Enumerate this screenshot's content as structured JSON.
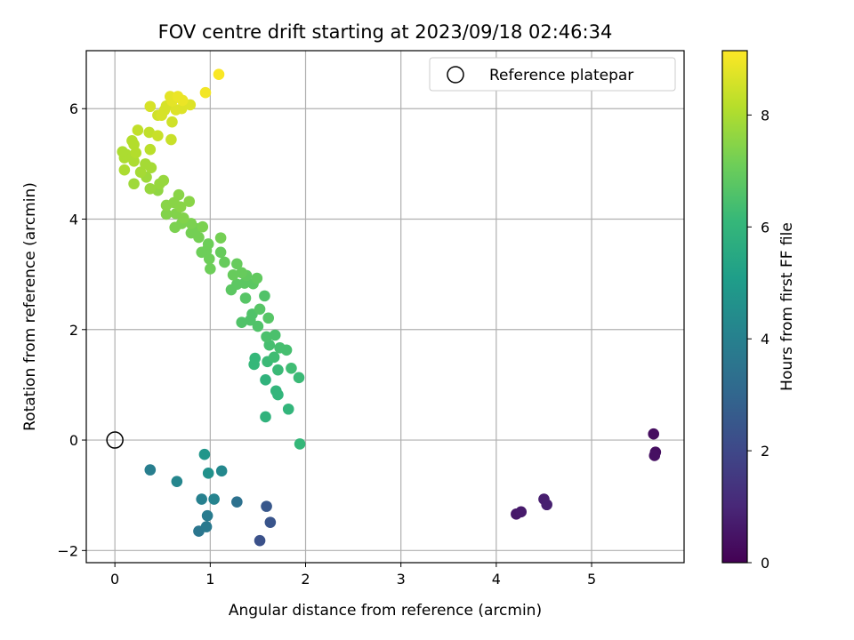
{
  "chart_data": {
    "type": "scatter",
    "title": "FOV centre drift starting at 2023/09/18 02:46:34",
    "xlabel": "Angular distance from reference (arcmin)",
    "ylabel": "Rotation from reference (arcmin)",
    "xlim": [
      -0.3,
      5.97
    ],
    "ylim": [
      -2.22,
      7.05
    ],
    "x_ticks": [
      0,
      1,
      2,
      3,
      4,
      5
    ],
    "y_ticks": [
      -2,
      0,
      2,
      4,
      6
    ],
    "grid": true,
    "legend": {
      "position": "top-right",
      "entries": [
        "Reference platepar"
      ]
    },
    "reference_point": {
      "x": 0,
      "y": 0,
      "label": "Reference platepar"
    },
    "colorbar": {
      "label": "Hours from first FF file",
      "range": [
        0,
        9.15
      ],
      "ticks": [
        0,
        2,
        4,
        6,
        8
      ],
      "colormap": "viridis",
      "stops": [
        "#440154",
        "#482878",
        "#3e4989",
        "#31688e",
        "#26828e",
        "#1f9e89",
        "#35b779",
        "#6ece58",
        "#b5de2b",
        "#fde725"
      ]
    },
    "points": [
      {
        "x": 5.65,
        "y": 0.11,
        "c": 0.3
      },
      {
        "x": 5.67,
        "y": -0.22,
        "c": 0.35
      },
      {
        "x": 5.66,
        "y": -0.28,
        "c": 0.4
      },
      {
        "x": 4.21,
        "y": -1.34,
        "c": 0.6
      },
      {
        "x": 4.26,
        "y": -1.3,
        "c": 0.65
      },
      {
        "x": 4.5,
        "y": -1.07,
        "c": 0.75
      },
      {
        "x": 4.53,
        "y": -1.17,
        "c": 0.8
      },
      {
        "x": 1.52,
        "y": -1.82,
        "c": 2.3
      },
      {
        "x": 1.63,
        "y": -1.49,
        "c": 2.4
      },
      {
        "x": 1.59,
        "y": -1.2,
        "c": 2.5
      },
      {
        "x": 1.28,
        "y": -1.12,
        "c": 3.4
      },
      {
        "x": 0.88,
        "y": -1.65,
        "c": 3.6
      },
      {
        "x": 0.96,
        "y": -1.57,
        "c": 3.7
      },
      {
        "x": 0.97,
        "y": -1.37,
        "c": 3.8
      },
      {
        "x": 0.91,
        "y": -1.07,
        "c": 4.0
      },
      {
        "x": 1.04,
        "y": -1.07,
        "c": 4.1
      },
      {
        "x": 0.37,
        "y": -0.54,
        "c": 3.9
      },
      {
        "x": 0.65,
        "y": -0.75,
        "c": 4.2
      },
      {
        "x": 1.12,
        "y": -0.56,
        "c": 4.3
      },
      {
        "x": 0.98,
        "y": -0.6,
        "c": 4.6
      },
      {
        "x": 0.94,
        "y": -0.26,
        "c": 4.8
      },
      {
        "x": 1.94,
        "y": -0.07,
        "c": 6.1
      },
      {
        "x": 1.58,
        "y": 0.42,
        "c": 5.9
      },
      {
        "x": 1.82,
        "y": 0.56,
        "c": 6.0
      },
      {
        "x": 1.69,
        "y": 0.89,
        "c": 6.0
      },
      {
        "x": 1.71,
        "y": 0.82,
        "c": 6.0
      },
      {
        "x": 1.58,
        "y": 1.09,
        "c": 5.9
      },
      {
        "x": 1.93,
        "y": 1.13,
        "c": 6.2
      },
      {
        "x": 1.71,
        "y": 1.27,
        "c": 6.2
      },
      {
        "x": 1.85,
        "y": 1.3,
        "c": 6.3
      },
      {
        "x": 1.46,
        "y": 1.37,
        "c": 6.1
      },
      {
        "x": 1.47,
        "y": 1.48,
        "c": 6.1
      },
      {
        "x": 1.6,
        "y": 1.42,
        "c": 6.2
      },
      {
        "x": 1.67,
        "y": 1.5,
        "c": 6.3
      },
      {
        "x": 1.73,
        "y": 1.67,
        "c": 6.4
      },
      {
        "x": 1.8,
        "y": 1.63,
        "c": 6.4
      },
      {
        "x": 1.62,
        "y": 1.72,
        "c": 6.4
      },
      {
        "x": 1.59,
        "y": 1.87,
        "c": 6.5
      },
      {
        "x": 1.68,
        "y": 1.9,
        "c": 6.5
      },
      {
        "x": 1.5,
        "y": 2.06,
        "c": 6.6
      },
      {
        "x": 1.42,
        "y": 2.17,
        "c": 6.6
      },
      {
        "x": 1.33,
        "y": 2.13,
        "c": 6.6
      },
      {
        "x": 1.44,
        "y": 2.28,
        "c": 6.6
      },
      {
        "x": 1.52,
        "y": 2.37,
        "c": 6.7
      },
      {
        "x": 1.61,
        "y": 2.21,
        "c": 6.7
      },
      {
        "x": 1.57,
        "y": 2.61,
        "c": 6.6
      },
      {
        "x": 1.37,
        "y": 2.57,
        "c": 6.7
      },
      {
        "x": 1.22,
        "y": 2.72,
        "c": 6.8
      },
      {
        "x": 1.28,
        "y": 2.82,
        "c": 6.8
      },
      {
        "x": 1.36,
        "y": 2.84,
        "c": 6.8
      },
      {
        "x": 1.45,
        "y": 2.83,
        "c": 6.8
      },
      {
        "x": 1.49,
        "y": 2.93,
        "c": 6.9
      },
      {
        "x": 1.38,
        "y": 2.98,
        "c": 6.9
      },
      {
        "x": 1.33,
        "y": 3.03,
        "c": 7.0
      },
      {
        "x": 1.24,
        "y": 2.99,
        "c": 7.0
      },
      {
        "x": 1.28,
        "y": 3.19,
        "c": 7.0
      },
      {
        "x": 1.15,
        "y": 3.22,
        "c": 7.0
      },
      {
        "x": 1.11,
        "y": 3.4,
        "c": 7.0
      },
      {
        "x": 1.0,
        "y": 3.1,
        "c": 7.1
      },
      {
        "x": 0.99,
        "y": 3.28,
        "c": 7.1
      },
      {
        "x": 0.96,
        "y": 3.43,
        "c": 7.1
      },
      {
        "x": 0.91,
        "y": 3.4,
        "c": 7.1
      },
      {
        "x": 0.98,
        "y": 3.55,
        "c": 7.1
      },
      {
        "x": 1.11,
        "y": 3.66,
        "c": 7.2
      },
      {
        "x": 0.88,
        "y": 3.67,
        "c": 7.2
      },
      {
        "x": 0.8,
        "y": 3.75,
        "c": 7.2
      },
      {
        "x": 0.85,
        "y": 3.83,
        "c": 7.2
      },
      {
        "x": 0.92,
        "y": 3.86,
        "c": 7.3
      },
      {
        "x": 0.8,
        "y": 3.92,
        "c": 7.3
      },
      {
        "x": 0.63,
        "y": 3.85,
        "c": 7.3
      },
      {
        "x": 0.7,
        "y": 3.92,
        "c": 7.3
      },
      {
        "x": 0.72,
        "y": 4.02,
        "c": 7.4
      },
      {
        "x": 0.64,
        "y": 4.1,
        "c": 7.4
      },
      {
        "x": 0.54,
        "y": 4.09,
        "c": 7.4
      },
      {
        "x": 0.54,
        "y": 4.25,
        "c": 7.5
      },
      {
        "x": 0.62,
        "y": 4.3,
        "c": 7.5
      },
      {
        "x": 0.69,
        "y": 4.22,
        "c": 7.5
      },
      {
        "x": 0.78,
        "y": 4.32,
        "c": 7.5
      },
      {
        "x": 0.67,
        "y": 4.44,
        "c": 7.5
      },
      {
        "x": 0.45,
        "y": 4.52,
        "c": 7.6
      },
      {
        "x": 0.37,
        "y": 4.55,
        "c": 7.7
      },
      {
        "x": 0.47,
        "y": 4.64,
        "c": 7.7
      },
      {
        "x": 0.51,
        "y": 4.7,
        "c": 7.7
      },
      {
        "x": 0.2,
        "y": 4.64,
        "c": 7.8
      },
      {
        "x": 0.33,
        "y": 4.76,
        "c": 7.8
      },
      {
        "x": 0.27,
        "y": 4.85,
        "c": 7.9
      },
      {
        "x": 0.38,
        "y": 4.93,
        "c": 7.9
      },
      {
        "x": 0.32,
        "y": 5.0,
        "c": 7.9
      },
      {
        "x": 0.1,
        "y": 4.89,
        "c": 8.0
      },
      {
        "x": 0.2,
        "y": 5.05,
        "c": 8.0
      },
      {
        "x": 0.1,
        "y": 5.11,
        "c": 8.0
      },
      {
        "x": 0.12,
        "y": 5.17,
        "c": 8.0
      },
      {
        "x": 0.08,
        "y": 5.22,
        "c": 8.0
      },
      {
        "x": 0.22,
        "y": 5.2,
        "c": 8.1
      },
      {
        "x": 0.2,
        "y": 5.35,
        "c": 8.1
      },
      {
        "x": 0.18,
        "y": 5.42,
        "c": 8.1
      },
      {
        "x": 0.37,
        "y": 5.26,
        "c": 8.2
      },
      {
        "x": 0.24,
        "y": 5.61,
        "c": 8.3
      },
      {
        "x": 0.36,
        "y": 5.57,
        "c": 8.3
      },
      {
        "x": 0.45,
        "y": 5.51,
        "c": 8.4
      },
      {
        "x": 0.59,
        "y": 5.44,
        "c": 8.4
      },
      {
        "x": 0.6,
        "y": 5.76,
        "c": 8.5
      },
      {
        "x": 0.45,
        "y": 5.88,
        "c": 8.5
      },
      {
        "x": 0.49,
        "y": 5.88,
        "c": 8.6
      },
      {
        "x": 0.52,
        "y": 5.97,
        "c": 8.6
      },
      {
        "x": 0.54,
        "y": 6.05,
        "c": 8.6
      },
      {
        "x": 0.37,
        "y": 6.04,
        "c": 8.6
      },
      {
        "x": 0.64,
        "y": 5.98,
        "c": 8.7
      },
      {
        "x": 0.7,
        "y": 6.0,
        "c": 8.7
      },
      {
        "x": 0.79,
        "y": 6.07,
        "c": 8.7
      },
      {
        "x": 0.6,
        "y": 6.14,
        "c": 8.8
      },
      {
        "x": 0.58,
        "y": 6.22,
        "c": 8.8
      },
      {
        "x": 0.66,
        "y": 6.22,
        "c": 8.9
      },
      {
        "x": 0.71,
        "y": 6.15,
        "c": 8.9
      },
      {
        "x": 0.95,
        "y": 6.29,
        "c": 9.0
      },
      {
        "x": 1.09,
        "y": 6.62,
        "c": 9.1
      }
    ]
  }
}
